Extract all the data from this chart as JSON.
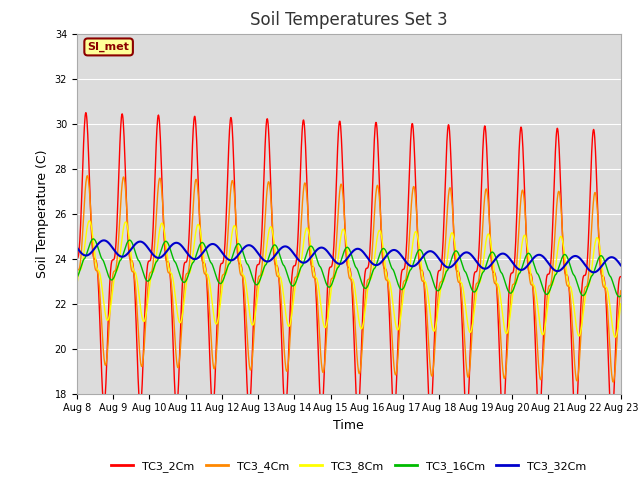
{
  "title": "Soil Temperatures Set 3",
  "xlabel": "Time",
  "ylabel": "Soil Temperature (C)",
  "ylim": [
    18,
    34
  ],
  "n_days": 15,
  "bg_color": "#dcdcdc",
  "fig_color": "#ffffff",
  "grid_color": "#ffffff",
  "series": {
    "TC3_2Cm": {
      "color": "#ff0000",
      "lw": 1.0,
      "amplitude": 6.5,
      "mean": 23.5,
      "phase": 0.0,
      "sharpness": 3.0
    },
    "TC3_4Cm": {
      "color": "#ff8800",
      "lw": 1.0,
      "amplitude": 4.2,
      "mean": 23.0,
      "phase": 0.25,
      "sharpness": 2.5
    },
    "TC3_8Cm": {
      "color": "#ffff00",
      "lw": 1.0,
      "amplitude": 2.2,
      "mean": 23.0,
      "phase": 0.6,
      "sharpness": 2.0
    },
    "TC3_16Cm": {
      "color": "#00bb00",
      "lw": 1.0,
      "amplitude": 0.9,
      "mean": 23.5,
      "phase": 1.3,
      "sharpness": 1.5
    },
    "TC3_32Cm": {
      "color": "#0000cc",
      "lw": 1.5,
      "amplitude": 0.35,
      "mean": 24.0,
      "phase": 3.14,
      "sharpness": 1.0
    }
  },
  "annotation_text": "SI_met",
  "tick_fontsize": 7,
  "ylabel_fontsize": 9,
  "xlabel_fontsize": 9,
  "title_fontsize": 12
}
